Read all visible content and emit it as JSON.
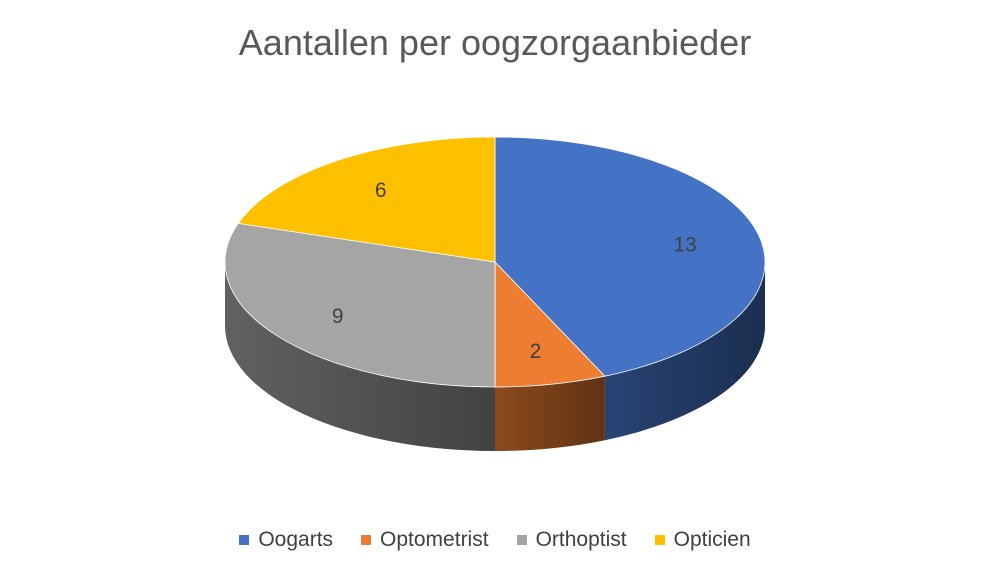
{
  "chart_data": {
    "type": "pie",
    "title": "Aantallen per oogzorgaanbieder",
    "categories": [
      "Oogarts",
      "Optometrist",
      "Orthoptist",
      "Opticien"
    ],
    "values": [
      13,
      2,
      9,
      6
    ],
    "colors": [
      "#4472C4",
      "#ED7D31",
      "#A5A5A5",
      "#FFC000"
    ],
    "legend_position": "bottom",
    "style": "3d-pie"
  }
}
